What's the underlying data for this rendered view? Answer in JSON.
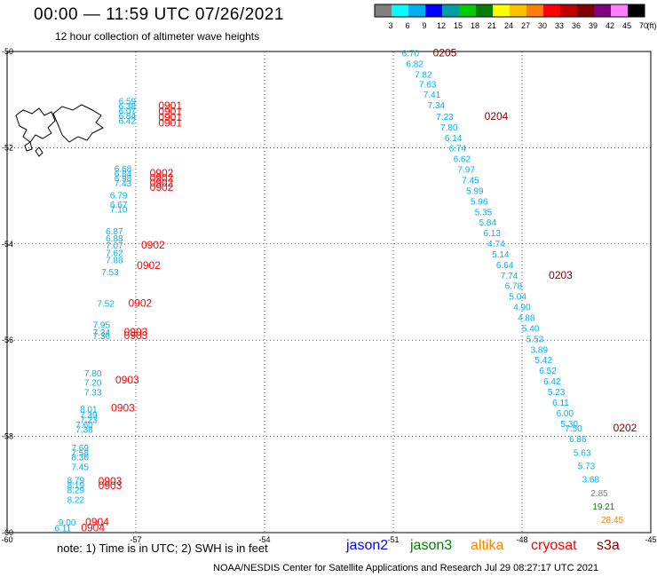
{
  "header": {
    "title": "00:00 — 11:59 UTC 07/26/2021",
    "subtitle": "12 hour collection of altimeter wave heights"
  },
  "color_scale": {
    "labels": [
      "3",
      "6",
      "9",
      "12",
      "15",
      "18",
      "21",
      "24",
      "27",
      "30",
      "33",
      "36",
      "39",
      "42",
      "45",
      "70"
    ],
    "unit": "(ft)",
    "colors": [
      "#808080",
      "#00ffff",
      "#00b0f0",
      "#0000ff",
      "#00a0a0",
      "#00cc00",
      "#008000",
      "#ffff00",
      "#ffc000",
      "#ff8000",
      "#ff0000",
      "#c00000",
      "#800000",
      "#800080",
      "#ff80ff",
      "#000000"
    ]
  },
  "map": {
    "lat_labels": [
      "-50",
      "-52",
      "-54",
      "-56",
      "-58",
      "-60"
    ],
    "lon_labels": [
      "-60",
      "-57",
      "-54",
      "-51",
      "-48",
      "-45"
    ]
  },
  "chart_data": {
    "type": "scatter",
    "units": "ft",
    "observations": [
      {
        "v": "6.70",
        "lon": -50.6,
        "lat": -50.1,
        "c": "#00b0f0"
      },
      {
        "v": "6.82",
        "lon": -50.5,
        "lat": -50.32,
        "c": "#00b0f0"
      },
      {
        "v": "7.82",
        "lon": -50.3,
        "lat": -50.54,
        "c": "#00b0f0"
      },
      {
        "v": "7.63",
        "lon": -50.2,
        "lat": -50.75,
        "c": "#00b0f0"
      },
      {
        "v": "7.41",
        "lon": -50.1,
        "lat": -50.96,
        "c": "#00b0f0"
      },
      {
        "v": "7.34",
        "lon": -50.0,
        "lat": -51.18,
        "c": "#00b0f0"
      },
      {
        "v": "7.23",
        "lon": -49.8,
        "lat": -51.42,
        "c": "#00b0f0"
      },
      {
        "v": "7.80",
        "lon": -49.7,
        "lat": -51.64,
        "c": "#00b0f0"
      },
      {
        "v": "6.14",
        "lon": -49.6,
        "lat": -51.86,
        "c": "#00b0f0"
      },
      {
        "v": "6.74",
        "lon": -49.5,
        "lat": -52.08,
        "c": "#00b0f0"
      },
      {
        "v": "6.62",
        "lon": -49.4,
        "lat": -52.3,
        "c": "#00b0f0"
      },
      {
        "v": "7.97",
        "lon": -49.3,
        "lat": -52.52,
        "c": "#00b0f0"
      },
      {
        "v": "7.45",
        "lon": -49.2,
        "lat": -52.74,
        "c": "#00b0f0"
      },
      {
        "v": "5.99",
        "lon": -49.1,
        "lat": -52.96,
        "c": "#00b0f0"
      },
      {
        "v": "5.96",
        "lon": -49.0,
        "lat": -53.18,
        "c": "#00b0f0"
      },
      {
        "v": "5.35",
        "lon": -48.9,
        "lat": -53.4,
        "c": "#00b0f0"
      },
      {
        "v": "5.84",
        "lon": -48.8,
        "lat": -53.62,
        "c": "#00b0f0"
      },
      {
        "v": "6.13",
        "lon": -48.7,
        "lat": -53.84,
        "c": "#00b0f0"
      },
      {
        "v": "4.74",
        "lon": -48.6,
        "lat": -54.06,
        "c": "#00b0f0"
      },
      {
        "v": "5.14",
        "lon": -48.5,
        "lat": -54.28,
        "c": "#00b0f0"
      },
      {
        "v": "6.64",
        "lon": -48.4,
        "lat": -54.5,
        "c": "#00b0f0"
      },
      {
        "v": "7.74",
        "lon": -48.3,
        "lat": -54.72,
        "c": "#00b0f0"
      },
      {
        "v": "6.78",
        "lon": -48.2,
        "lat": -54.94,
        "c": "#00b0f0"
      },
      {
        "v": "5.04",
        "lon": -48.1,
        "lat": -55.16,
        "c": "#00b0f0"
      },
      {
        "v": "4.90",
        "lon": -48.0,
        "lat": -55.38,
        "c": "#00b0f0"
      },
      {
        "v": "4.88",
        "lon": -47.9,
        "lat": -55.6,
        "c": "#00b0f0"
      },
      {
        "v": "5.40",
        "lon": -47.8,
        "lat": -55.82,
        "c": "#00b0f0"
      },
      {
        "v": "5.53",
        "lon": -47.7,
        "lat": -56.04,
        "c": "#00b0f0"
      },
      {
        "v": "3.89",
        "lon": -47.6,
        "lat": -56.26,
        "c": "#00b0f0"
      },
      {
        "v": "5.42",
        "lon": -47.5,
        "lat": -56.48,
        "c": "#00b0f0"
      },
      {
        "v": "6.52",
        "lon": -47.4,
        "lat": -56.7,
        "c": "#00b0f0"
      },
      {
        "v": "6.42",
        "lon": -47.3,
        "lat": -56.92,
        "c": "#00b0f0"
      },
      {
        "v": "5.23",
        "lon": -47.2,
        "lat": -57.14,
        "c": "#00b0f0"
      },
      {
        "v": "6.11",
        "lon": -47.1,
        "lat": -57.36,
        "c": "#00b0f0"
      },
      {
        "v": "6.00",
        "lon": -47.0,
        "lat": -57.58,
        "c": "#00b0f0"
      },
      {
        "v": "5.30",
        "lon": -46.9,
        "lat": -57.8,
        "c": "#00b0f0"
      },
      {
        "v": "7.50",
        "lon": -46.8,
        "lat": -57.9,
        "c": "#00b0f0"
      },
      {
        "v": "6.86",
        "lon": -46.7,
        "lat": -58.12,
        "c": "#00b0f0"
      },
      {
        "v": "5.63",
        "lon": -46.6,
        "lat": -58.4,
        "c": "#00b0f0"
      },
      {
        "v": "5.73",
        "lon": -46.5,
        "lat": -58.68,
        "c": "#00b0f0"
      },
      {
        "v": "3.68",
        "lon": -46.4,
        "lat": -58.96,
        "c": "#00b0f0"
      },
      {
        "v": "2.85",
        "lon": -46.2,
        "lat": -59.24,
        "c": "#808080"
      },
      {
        "v": "19.21",
        "lon": -46.1,
        "lat": -59.52,
        "c": "#008000"
      },
      {
        "v": "28.45",
        "lon": -45.9,
        "lat": -59.8,
        "c": "#ff8000"
      },
      {
        "v": "6.59",
        "lon": -57.2,
        "lat": -51.1,
        "c": "#00b0f0"
      },
      {
        "v": "6.38",
        "lon": -57.2,
        "lat": -51.2,
        "c": "#00b0f0"
      },
      {
        "v": "6.07",
        "lon": -57.2,
        "lat": -51.3,
        "c": "#00b0f0"
      },
      {
        "v": "6.84",
        "lon": -57.2,
        "lat": -51.4,
        "c": "#00b0f0"
      },
      {
        "v": "6.42",
        "lon": -57.2,
        "lat": -51.5,
        "c": "#00b0f0"
      },
      {
        "v": "6.68",
        "lon": -57.3,
        "lat": -52.5,
        "c": "#00b0f0"
      },
      {
        "v": "6.84",
        "lon": -57.3,
        "lat": -52.6,
        "c": "#00b0f0"
      },
      {
        "v": "6.98",
        "lon": -57.3,
        "lat": -52.7,
        "c": "#00b0f0"
      },
      {
        "v": "7.43",
        "lon": -57.3,
        "lat": -52.8,
        "c": "#00b0f0"
      },
      {
        "v": "6.79",
        "lon": -57.4,
        "lat": -53.05,
        "c": "#00b0f0"
      },
      {
        "v": "6.67",
        "lon": -57.4,
        "lat": -53.25,
        "c": "#00b0f0"
      },
      {
        "v": "7.10",
        "lon": -57.4,
        "lat": -53.35,
        "c": "#00b0f0"
      },
      {
        "v": "6.87",
        "lon": -57.5,
        "lat": -53.8,
        "c": "#00b0f0"
      },
      {
        "v": "6.88",
        "lon": -57.5,
        "lat": -53.95,
        "c": "#00b0f0"
      },
      {
        "v": "7.07",
        "lon": -57.5,
        "lat": -54.1,
        "c": "#00b0f0"
      },
      {
        "v": "7.62",
        "lon": -57.5,
        "lat": -54.25,
        "c": "#00b0f0"
      },
      {
        "v": "7.88",
        "lon": -57.5,
        "lat": -54.4,
        "c": "#00b0f0"
      },
      {
        "v": "7.53",
        "lon": -57.6,
        "lat": -54.65,
        "c": "#00b0f0"
      },
      {
        "v": "7.52",
        "lon": -57.7,
        "lat": -55.3,
        "c": "#00b0f0"
      },
      {
        "v": "7.95",
        "lon": -57.8,
        "lat": -55.75,
        "c": "#00b0f0"
      },
      {
        "v": "7.34",
        "lon": -57.8,
        "lat": -55.9,
        "c": "#00b0f0"
      },
      {
        "v": "7.36",
        "lon": -57.8,
        "lat": -55.98,
        "c": "#00b0f0"
      },
      {
        "v": "7.80",
        "lon": -58.0,
        "lat": -56.75,
        "c": "#00b0f0"
      },
      {
        "v": "7.20",
        "lon": -58.0,
        "lat": -56.95,
        "c": "#00b0f0"
      },
      {
        "v": "7.33",
        "lon": -58.0,
        "lat": -57.15,
        "c": "#00b0f0"
      },
      {
        "v": "8.01",
        "lon": -58.1,
        "lat": -57.5,
        "c": "#00b0f0"
      },
      {
        "v": "7.39",
        "lon": -58.1,
        "lat": -57.62,
        "c": "#00b0f0"
      },
      {
        "v": "7.23",
        "lon": -58.1,
        "lat": -57.72,
        "c": "#00b0f0"
      },
      {
        "v": "7.60",
        "lon": -58.2,
        "lat": -57.82,
        "c": "#00b0f0"
      },
      {
        "v": "7.38",
        "lon": -58.2,
        "lat": -57.92,
        "c": "#00b0f0"
      },
      {
        "v": "7.69",
        "lon": -58.3,
        "lat": -58.3,
        "c": "#00b0f0"
      },
      {
        "v": "7.58",
        "lon": -58.3,
        "lat": -58.4,
        "c": "#00b0f0"
      },
      {
        "v": "8.36",
        "lon": -58.3,
        "lat": -58.5,
        "c": "#00b0f0"
      },
      {
        "v": "7.45",
        "lon": -58.3,
        "lat": -58.7,
        "c": "#00b0f0"
      },
      {
        "v": "8.79",
        "lon": -58.4,
        "lat": -58.98,
        "c": "#00b0f0"
      },
      {
        "v": "8.19",
        "lon": -58.4,
        "lat": -59.08,
        "c": "#00b0f0"
      },
      {
        "v": "8.29",
        "lon": -58.4,
        "lat": -59.18,
        "c": "#00b0f0"
      },
      {
        "v": "8.22",
        "lon": -58.4,
        "lat": -59.38,
        "c": "#00b0f0"
      },
      {
        "v": "9.00",
        "lon": -58.6,
        "lat": -59.85,
        "c": "#00b0f0"
      },
      {
        "v": "6.11",
        "lon": -58.7,
        "lat": -59.97,
        "c": "#00b0f0"
      }
    ],
    "time_tags": [
      {
        "t": "0205",
        "lon": -49.8,
        "lat": -50.1,
        "c": "#800000"
      },
      {
        "t": "0204",
        "lon": -48.6,
        "lat": -51.42,
        "c": "#800000"
      },
      {
        "t": "0203",
        "lon": -47.1,
        "lat": -54.72,
        "c": "#800000"
      },
      {
        "t": "0202",
        "lon": -45.6,
        "lat": -57.9,
        "c": "#800000"
      },
      {
        "t": "0901",
        "lon": -56.2,
        "lat": -51.2,
        "c": "#ff0000"
      },
      {
        "t": "0901",
        "lon": -56.2,
        "lat": -51.32,
        "c": "#ff0000"
      },
      {
        "t": "0901",
        "lon": -56.2,
        "lat": -51.44,
        "c": "#ff0000"
      },
      {
        "t": "0901",
        "lon": -56.2,
        "lat": -51.56,
        "c": "#ff0000"
      },
      {
        "t": "0902",
        "lon": -56.4,
        "lat": -52.6,
        "c": "#ff0000"
      },
      {
        "t": "0902",
        "lon": -56.4,
        "lat": -52.7,
        "c": "#ff0000"
      },
      {
        "t": "0902",
        "lon": -56.4,
        "lat": -52.8,
        "c": "#ff0000"
      },
      {
        "t": "0902",
        "lon": -56.4,
        "lat": -52.9,
        "c": "#ff0000"
      },
      {
        "t": "0902",
        "lon": -56.6,
        "lat": -54.1,
        "c": "#ff0000"
      },
      {
        "t": "0902",
        "lon": -56.7,
        "lat": -54.52,
        "c": "#ff0000"
      },
      {
        "t": "0902",
        "lon": -56.9,
        "lat": -55.3,
        "c": "#ff0000"
      },
      {
        "t": "0903",
        "lon": -57.0,
        "lat": -55.9,
        "c": "#ff0000"
      },
      {
        "t": "0903",
        "lon": -57.0,
        "lat": -55.98,
        "c": "#ff0000"
      },
      {
        "t": "0903",
        "lon": -57.2,
        "lat": -56.9,
        "c": "#ff0000"
      },
      {
        "t": "0903",
        "lon": -57.3,
        "lat": -57.48,
        "c": "#ff0000"
      },
      {
        "t": "0903",
        "lon": -57.6,
        "lat": -59.0,
        "c": "#ff0000"
      },
      {
        "t": "0903",
        "lon": -57.6,
        "lat": -59.1,
        "c": "#ff0000"
      },
      {
        "t": "0904",
        "lon": -57.9,
        "lat": -59.85,
        "c": "#ff0000"
      },
      {
        "t": "0904",
        "lon": -58.0,
        "lat": -59.97,
        "c": "#ff0000"
      }
    ]
  },
  "footer": {
    "note": "note:  1) Time is in UTC;  2) SWH is in feet",
    "satellites": [
      {
        "name": "jason2",
        "color": "#0000ff"
      },
      {
        "name": "jason3",
        "color": "#008000"
      },
      {
        "name": "altika",
        "color": "#ff8000"
      },
      {
        "name": "cryosat",
        "color": "#ff0000"
      },
      {
        "name": "s3a",
        "color": "#800000"
      }
    ],
    "credit": "NOAA/NESDIS Center for Satellite Applications and Research     Jul 29 08:27:17 UTC 2021"
  }
}
